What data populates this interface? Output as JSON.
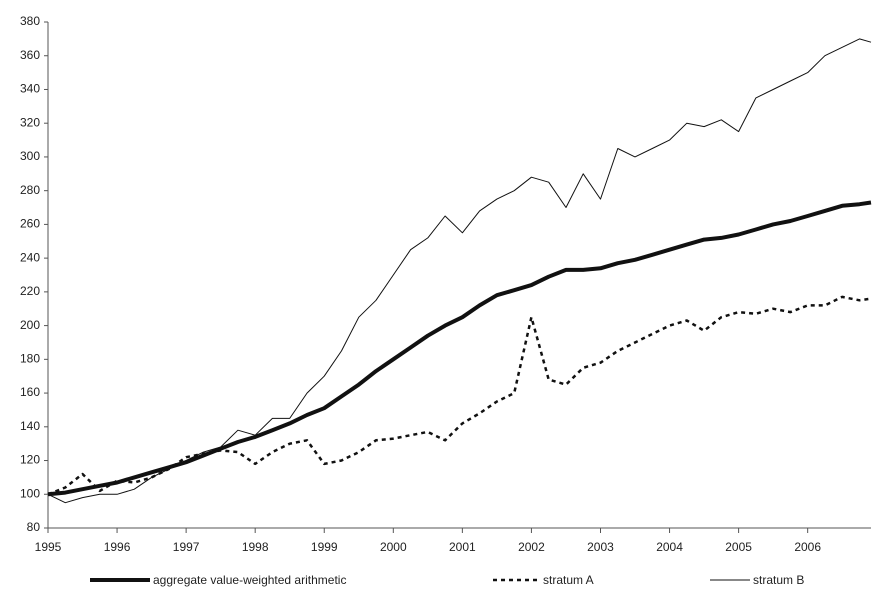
{
  "chart_data": {
    "type": "line",
    "x": [
      1995,
      1995.25,
      1995.5,
      1995.75,
      1996,
      1996.25,
      1996.5,
      1996.75,
      1997,
      1997.25,
      1997.5,
      1997.75,
      1998,
      1998.25,
      1998.5,
      1998.75,
      1999,
      1999.25,
      1999.5,
      1999.75,
      2000,
      2000.25,
      2000.5,
      2000.75,
      2001,
      2001.25,
      2001.5,
      2001.75,
      2002,
      2002.25,
      2002.5,
      2002.75,
      2003,
      2003.25,
      2003.5,
      2003.75,
      2004,
      2004.25,
      2004.5,
      2004.75,
      2005,
      2005.25,
      2005.5,
      2005.75,
      2006,
      2006.25,
      2006.5,
      2006.75,
      2006.917
    ],
    "xlim": [
      1995,
      2006.917
    ],
    "xticks": [
      1995,
      1996,
      1997,
      1998,
      1999,
      2000,
      2001,
      2002,
      2003,
      2004,
      2005,
      2006
    ],
    "ylim": [
      80,
      380
    ],
    "yticks": [
      80,
      100,
      120,
      140,
      160,
      180,
      200,
      220,
      240,
      260,
      280,
      300,
      320,
      340,
      360,
      380
    ],
    "series": [
      {
        "name": "aggregate value-weighted arithmetic",
        "color": "#111111",
        "line_width": 4,
        "dash": "none",
        "values": [
          100,
          101,
          103,
          105,
          107,
          110,
          113,
          116,
          119,
          123,
          127,
          131,
          134,
          138,
          142,
          147,
          151,
          158,
          165,
          173,
          180,
          187,
          194,
          200,
          205,
          212,
          218,
          221,
          224,
          229,
          233,
          233,
          234,
          237,
          239,
          242,
          245,
          248,
          251,
          252,
          254,
          257,
          260,
          262,
          265,
          268,
          271,
          272,
          273
        ]
      },
      {
        "name": "stratum A",
        "color": "#111111",
        "line_width": 2.5,
        "dash": "4,4",
        "values": [
          100,
          104,
          112,
          102,
          108,
          107,
          110,
          115,
          122,
          124,
          126,
          125,
          118,
          125,
          130,
          132,
          118,
          120,
          125,
          132,
          133,
          135,
          137,
          132,
          142,
          148,
          155,
          160,
          205,
          168,
          165,
          175,
          178,
          185,
          190,
          195,
          200,
          203,
          197,
          205,
          208,
          207,
          210,
          208,
          212,
          212,
          217,
          215,
          216
        ]
      },
      {
        "name": "stratum B",
        "color": "#111111",
        "line_width": 1,
        "dash": "none",
        "values": [
          100,
          95,
          98,
          100,
          100,
          103,
          110,
          115,
          120,
          125,
          128,
          138,
          135,
          145,
          145,
          160,
          170,
          185,
          205,
          215,
          230,
          245,
          252,
          265,
          255,
          268,
          275,
          280,
          288,
          285,
          270,
          290,
          275,
          305,
          300,
          305,
          310,
          320,
          318,
          322,
          315,
          335,
          340,
          345,
          350,
          360,
          365,
          370,
          368
        ]
      }
    ]
  }
}
